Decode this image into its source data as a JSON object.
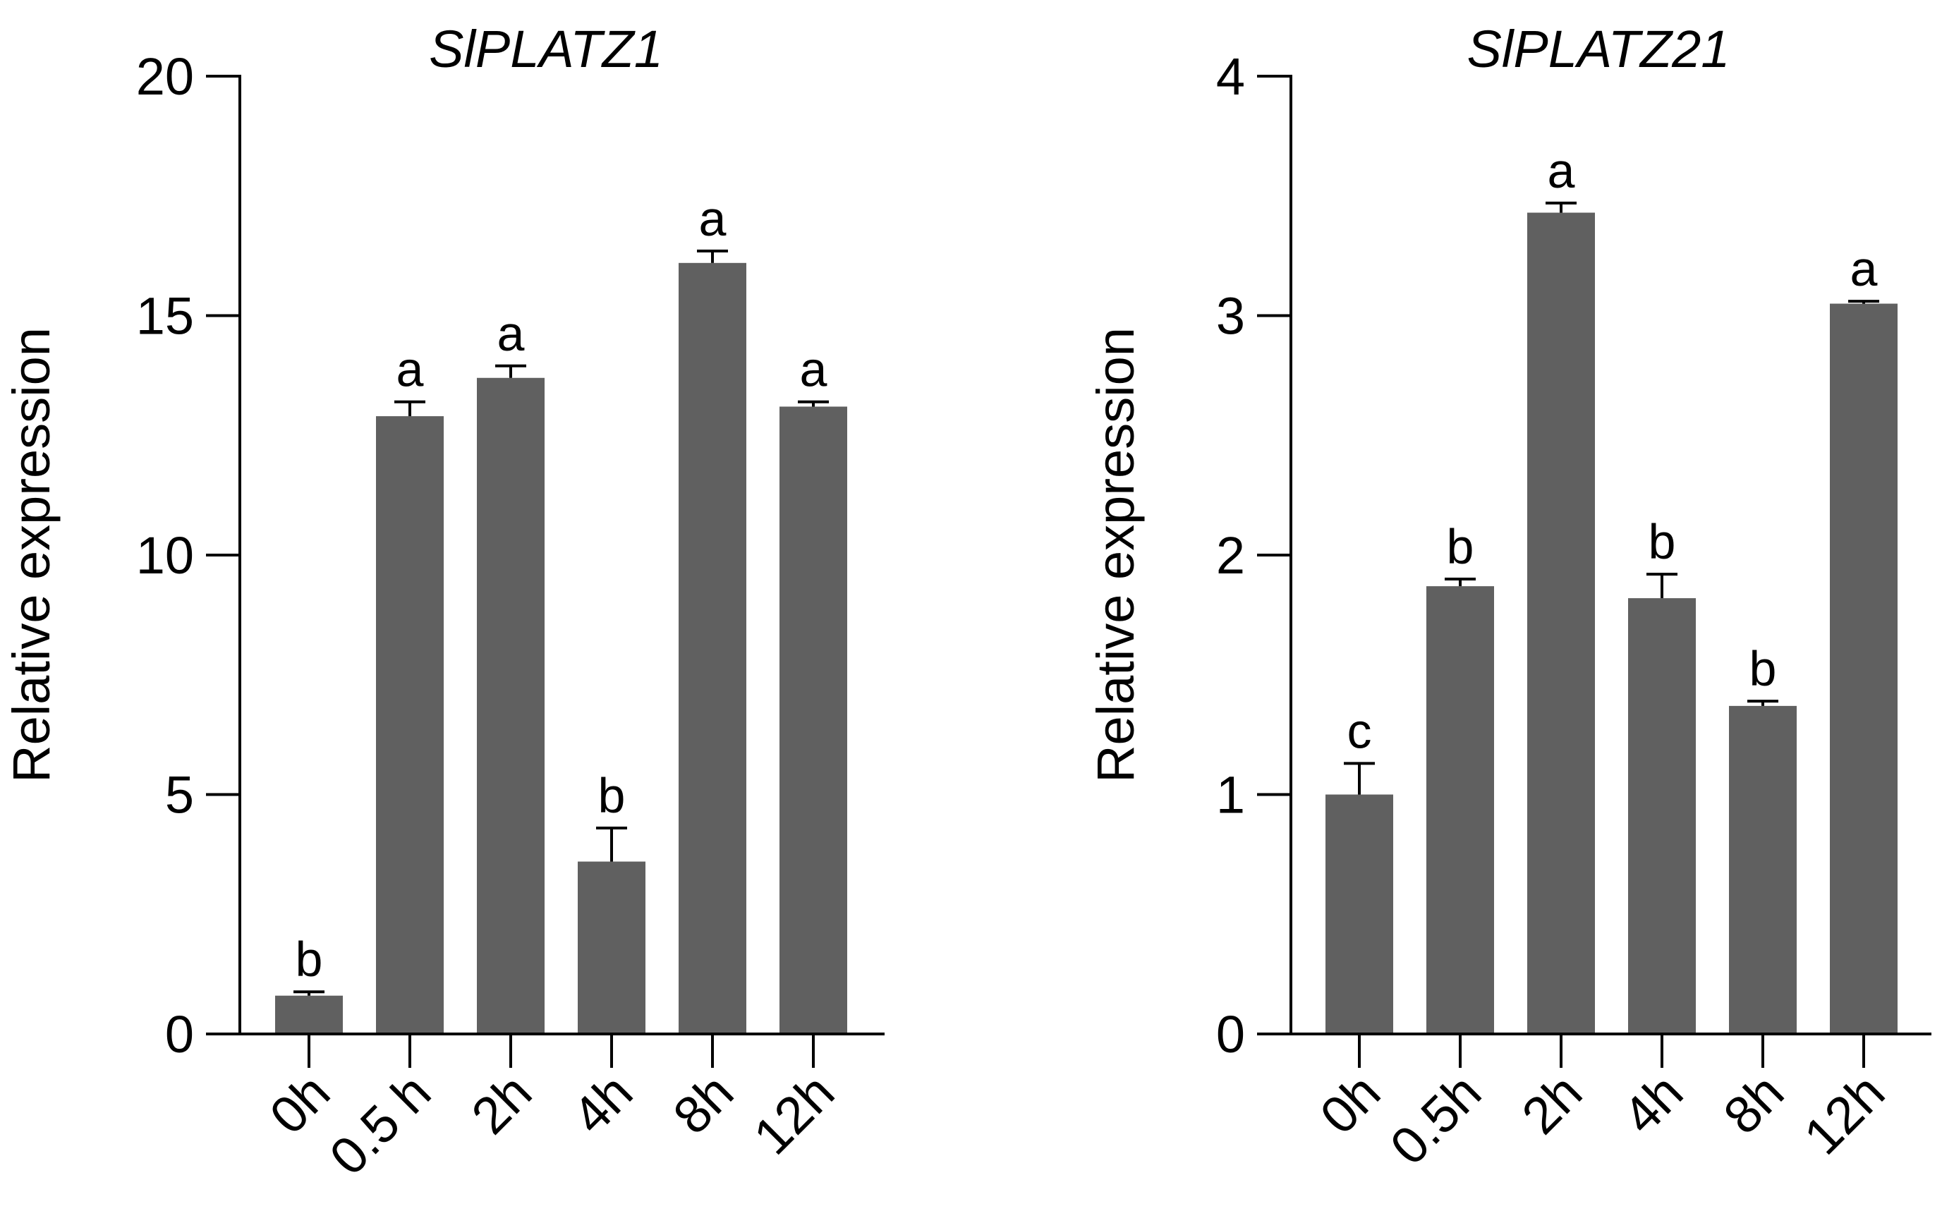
{
  "colors": {
    "bar": "#606060",
    "axis": "#000000"
  },
  "chart_data": [
    {
      "type": "bar",
      "title": "SlPLATZ1",
      "xlabel": "",
      "ylabel": "Relative expression",
      "ylim": [
        0,
        20
      ],
      "yticks": [
        0,
        5,
        10,
        15,
        20
      ],
      "ytick_labels": [
        "0",
        "5",
        "10",
        "15",
        "20"
      ],
      "categories": [
        "0h",
        "0.5 h",
        "2h",
        "4h",
        "8h",
        "12h"
      ],
      "values": [
        0.8,
        12.9,
        13.7,
        3.6,
        16.1,
        13.1
      ],
      "errors": [
        0.08,
        0.3,
        0.25,
        0.7,
        0.25,
        0.1
      ],
      "significance": [
        "b",
        "a",
        "a",
        "b",
        "a",
        "a"
      ]
    },
    {
      "type": "bar",
      "title": "SlPLATZ21",
      "xlabel": "",
      "ylabel": "Relative expression",
      "ylim": [
        0,
        4
      ],
      "yticks": [
        0,
        1,
        2,
        3,
        4
      ],
      "ytick_labels": [
        "0",
        "1",
        "2",
        "3",
        "4"
      ],
      "categories": [
        "0h",
        "0.5h",
        "2h",
        "4h",
        "8h",
        "12h"
      ],
      "values": [
        1.0,
        1.87,
        3.43,
        1.82,
        1.37,
        3.05
      ],
      "errors": [
        0.13,
        0.03,
        0.04,
        0.1,
        0.02,
        0.01
      ],
      "significance": [
        "c",
        "b",
        "a",
        "b",
        "b",
        "a"
      ]
    }
  ]
}
